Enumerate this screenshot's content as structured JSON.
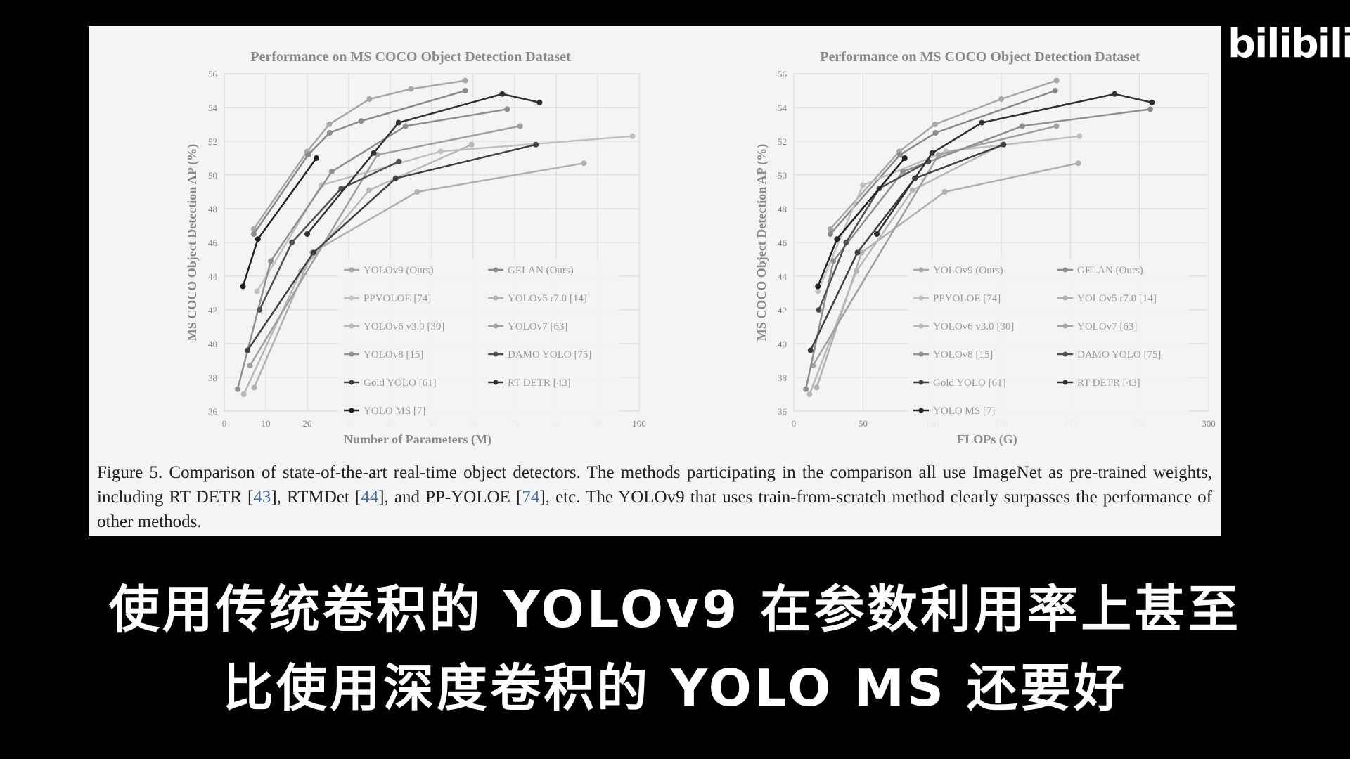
{
  "logo": "bilibili",
  "subtitles": {
    "line1": "使用传统卷积的 YOLOv9 在参数利用率上甚至",
    "line2": "比使用深度卷积的 YOLO MS 还要好"
  },
  "caption": {
    "text_a": "Figure 5. Comparison of state-of-the-art real-time object detectors. The methods participating in the comparison all use ImageNet as pre-trained weights, including RT DETR [",
    "ref_1": "43",
    "text_b": "], RTMDet [",
    "ref_2": "44",
    "text_c": "], and PP-YOLOE [",
    "ref_3": "74",
    "text_d": "], etc. The YOLOv9 that uses train-from-scratch method clearly surpasses the performance of other methods."
  },
  "chart_data": [
    {
      "type": "line",
      "title": "Performance on MS COCO Object Detection Dataset",
      "xlabel": "Number of Parameters (M)",
      "ylabel": "MS COCO Object Detection AP (%)",
      "xlim": [
        0,
        100
      ],
      "ylim": [
        36,
        56
      ],
      "xticks": [
        0,
        10,
        20,
        30,
        40,
        50,
        60,
        70,
        80,
        90,
        100
      ],
      "yticks": [
        36,
        38,
        40,
        42,
        44,
        46,
        48,
        50,
        52,
        54,
        56
      ],
      "grid": true,
      "legend_position": "bottom-right",
      "series": [
        {
          "name": "YOLOv9 (Ours)",
          "color": "#a8a8a8",
          "x": [
            7.1,
            20.0,
            25.3,
            35.0,
            45.0,
            58.1
          ],
          "y": [
            46.8,
            51.4,
            53.0,
            54.5,
            55.1,
            55.6
          ]
        },
        {
          "name": "GELAN (Ours)",
          "color": "#8a8a8a",
          "x": [
            7.1,
            20.2,
            25.4,
            33.0,
            58.1
          ],
          "y": [
            46.5,
            51.2,
            52.5,
            53.2,
            55.0
          ]
        },
        {
          "name": "PPYOLOE [74]",
          "color": "#c0c0c0",
          "x": [
            7.9,
            23.4,
            52.2,
            98.4
          ],
          "y": [
            43.1,
            49.4,
            51.4,
            52.3
          ]
        },
        {
          "name": "YOLOv5 r7.0 [14]",
          "color": "#b0b0b0",
          "x": [
            7.2,
            21.2,
            46.5,
            86.7
          ],
          "y": [
            37.4,
            45.4,
            49.0,
            50.7
          ]
        },
        {
          "name": "YOLOv6 v3.0 [30]",
          "color": "#b8b8b8",
          "x": [
            4.7,
            18.5,
            34.9,
            59.6
          ],
          "y": [
            37.0,
            44.3,
            49.1,
            51.8
          ]
        },
        {
          "name": "YOLOv7 [63]",
          "color": "#a0a0a0",
          "x": [
            6.2,
            36.9,
            71.3
          ],
          "y": [
            38.7,
            51.2,
            52.9
          ]
        },
        {
          "name": "YOLOv8 [15]",
          "color": "#909090",
          "x": [
            3.2,
            11.2,
            25.9,
            43.7,
            68.2
          ],
          "y": [
            37.3,
            44.9,
            50.2,
            52.9,
            53.9
          ]
        },
        {
          "name": "DAMO YOLO [75]",
          "color": "#505050",
          "x": [
            8.5,
            16.3,
            28.2,
            42.1
          ],
          "y": [
            42.0,
            46.0,
            49.2,
            50.8
          ]
        },
        {
          "name": "Gold YOLO [61]",
          "color": "#404040",
          "x": [
            5.6,
            21.5,
            41.3,
            75.1
          ],
          "y": [
            39.6,
            45.4,
            49.8,
            51.8
          ]
        },
        {
          "name": "RT DETR [43]",
          "color": "#303030",
          "x": [
            20.0,
            36.0,
            42.0,
            67.0,
            76.0
          ],
          "y": [
            46.5,
            51.3,
            53.1,
            54.8,
            54.3
          ]
        },
        {
          "name": "YOLO MS [7]",
          "color": "#202020",
          "x": [
            4.5,
            8.1,
            22.2
          ],
          "y": [
            43.4,
            46.2,
            51.0
          ]
        }
      ]
    },
    {
      "type": "line",
      "title": "Performance on MS COCO Object Detection Dataset",
      "xlabel": "FLOPs (G)",
      "ylabel": "MS COCO Object Detection AP (%)",
      "xlim": [
        0,
        300
      ],
      "ylim": [
        36,
        56
      ],
      "xticks": [
        0,
        50,
        100,
        150,
        200,
        250,
        300
      ],
      "yticks": [
        36,
        38,
        40,
        42,
        44,
        46,
        48,
        50,
        52,
        54,
        56
      ],
      "grid": true,
      "legend_position": "bottom-right",
      "series": [
        {
          "name": "YOLOv9 (Ours)",
          "color": "#a8a8a8",
          "x": [
            26.4,
            76.3,
            102.1,
            150.0,
            190.0
          ],
          "y": [
            46.8,
            51.4,
            53.0,
            54.5,
            55.6
          ]
        },
        {
          "name": "GELAN (Ours)",
          "color": "#8a8a8a",
          "x": [
            26.4,
            76.8,
            102.5,
            189.0
          ],
          "y": [
            46.5,
            51.2,
            52.5,
            55.0
          ]
        },
        {
          "name": "PPYOLOE [74]",
          "color": "#c0c0c0",
          "x": [
            17.4,
            49.9,
            110.1,
            206.6
          ],
          "y": [
            43.1,
            49.4,
            51.4,
            52.3
          ]
        },
        {
          "name": "YOLOv5 r7.0 [14]",
          "color": "#b0b0b0",
          "x": [
            16.5,
            49.0,
            109.1,
            205.7
          ],
          "y": [
            37.4,
            45.4,
            49.0,
            50.7
          ]
        },
        {
          "name": "YOLOv6 v3.0 [30]",
          "color": "#b8b8b8",
          "x": [
            11.4,
            45.3,
            85.8,
            150.7
          ],
          "y": [
            37.0,
            44.3,
            49.1,
            51.8
          ]
        },
        {
          "name": "YOLOv7 [63]",
          "color": "#a0a0a0",
          "x": [
            13.8,
            104.7,
            189.9
          ],
          "y": [
            38.7,
            51.2,
            52.9
          ]
        },
        {
          "name": "YOLOv8 [15]",
          "color": "#909090",
          "x": [
            8.7,
            28.6,
            78.9,
            165.2,
            257.8
          ],
          "y": [
            37.3,
            44.9,
            50.2,
            52.9,
            53.9
          ]
        },
        {
          "name": "DAMO YOLO [75]",
          "color": "#505050",
          "x": [
            18.1,
            37.8,
            61.8,
            97.3
          ],
          "y": [
            42.0,
            46.0,
            49.2,
            50.8
          ]
        },
        {
          "name": "Gold YOLO [61]",
          "color": "#404040",
          "x": [
            12.1,
            46.0,
            87.5,
            151.7
          ],
          "y": [
            39.6,
            45.4,
            49.8,
            51.8
          ]
        },
        {
          "name": "RT DETR [43]",
          "color": "#303030",
          "x": [
            60.0,
            100.0,
            136.0,
            232.0,
            259.0
          ],
          "y": [
            46.5,
            51.3,
            53.1,
            54.8,
            54.3
          ]
        },
        {
          "name": "YOLO MS [7]",
          "color": "#202020",
          "x": [
            17.4,
            31.2,
            80.2
          ],
          "y": [
            43.4,
            46.2,
            51.0
          ]
        }
      ]
    }
  ]
}
